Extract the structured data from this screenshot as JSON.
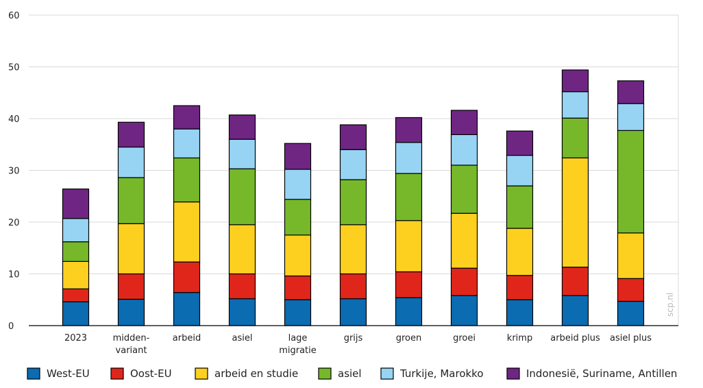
{
  "chart_data": {
    "type": "bar",
    "stacked": true,
    "categories": [
      "2023",
      "midden-variant",
      "arbeid",
      "asiel",
      "lage migratie",
      "grijs",
      "groen",
      "groei",
      "krimp",
      "arbeid plus",
      "asiel plus"
    ],
    "category_lines": [
      [
        "2023"
      ],
      [
        "midden-",
        "variant"
      ],
      [
        "arbeid"
      ],
      [
        "asiel"
      ],
      [
        "lage",
        "migratie"
      ],
      [
        "grijs"
      ],
      [
        "groen"
      ],
      [
        "groei"
      ],
      [
        "krimp"
      ],
      [
        "arbeid plus"
      ],
      [
        "asiel plus"
      ]
    ],
    "series": [
      {
        "name": "West-EU",
        "color": "#0b6cb2",
        "values": [
          4.6,
          5.1,
          6.4,
          5.2,
          5.0,
          5.2,
          5.4,
          5.8,
          5.0,
          5.8,
          4.7
        ]
      },
      {
        "name": "Oost-EU",
        "color": "#e0261b",
        "values": [
          2.5,
          4.9,
          5.9,
          4.8,
          4.6,
          4.8,
          5.0,
          5.3,
          4.7,
          5.5,
          4.4
        ]
      },
      {
        "name": "arbeid en studie",
        "color": "#fdd020",
        "values": [
          5.3,
          9.7,
          11.6,
          9.5,
          7.9,
          9.5,
          9.9,
          10.6,
          9.1,
          21.1,
          8.8
        ]
      },
      {
        "name": "asiel",
        "color": "#76b82a",
        "values": [
          3.8,
          8.9,
          8.5,
          10.8,
          6.9,
          8.7,
          9.1,
          9.3,
          8.2,
          7.7,
          19.8
        ]
      },
      {
        "name": "Turkije, Marokko",
        "color": "#97d4f3",
        "values": [
          4.5,
          5.9,
          5.6,
          5.7,
          5.8,
          5.8,
          6.0,
          5.9,
          5.9,
          5.1,
          5.2
        ]
      },
      {
        "name": "Indonesië, Suriname, Antillen",
        "color": "#6f2683",
        "values": [
          5.7,
          4.8,
          4.5,
          4.7,
          5.0,
          4.8,
          4.8,
          4.7,
          4.7,
          4.2,
          4.4
        ]
      }
    ],
    "y_ticks": [
      0,
      10,
      20,
      30,
      40,
      50,
      60
    ],
    "ylim": [
      0,
      60
    ],
    "grid": true,
    "legend_position": "bottom",
    "title": "",
    "xlabel": "",
    "ylabel": "",
    "watermark": "scp.nl"
  }
}
